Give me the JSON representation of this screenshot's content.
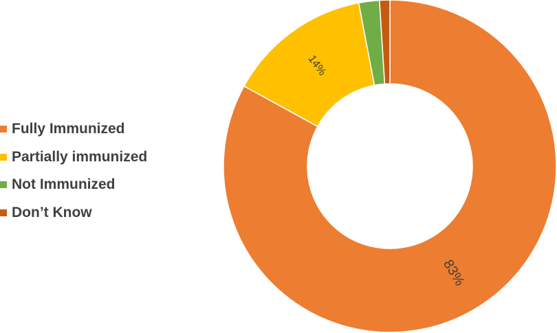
{
  "chart_data": {
    "type": "pie",
    "variant": "donut",
    "title": "",
    "categories": [
      "Fully Immunized",
      "Partially immunized",
      "Not Immunized",
      "Don’t Know"
    ],
    "values": [
      83,
      14,
      2,
      1
    ],
    "unit": "%",
    "colors": [
      "#ED7D31",
      "#FFC000",
      "#70AD47",
      "#C55A11"
    ],
    "data_labels": [
      "83%",
      "14%",
      "",
      ""
    ],
    "legend": {
      "position": "left"
    }
  }
}
